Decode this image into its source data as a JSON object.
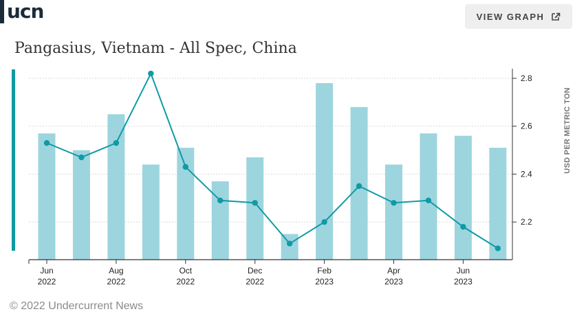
{
  "brand": {
    "logo_text": "ucn"
  },
  "header": {
    "view_graph_label": "VIEW GRAPH",
    "view_graph_icon": "external-link-icon"
  },
  "footer": {
    "copyright": "© 2022 Undercurrent News"
  },
  "colors": {
    "bar": "#9dd5de",
    "line": "#0f9aa5",
    "accent": "#0f9aa5",
    "grid": "#d9d9d9"
  },
  "chart_data": {
    "type": "bar",
    "title": "Pangasius, Vietnam - All Spec, China",
    "ylabel": "USD PER METRIC TON",
    "ylim": [
      2.04,
      2.84
    ],
    "yticks": [
      2.2,
      2.4,
      2.6,
      2.8
    ],
    "y_axis_position": "right",
    "grid": true,
    "legend": "none",
    "months": [
      "2022-06",
      "2022-07",
      "2022-08",
      "2022-09",
      "2022-10",
      "2022-11",
      "2022-12",
      "2023-01",
      "2023-02",
      "2023-03",
      "2023-04",
      "2023-05",
      "2023-06",
      "2023-07"
    ],
    "x_tick_labels": [
      {
        "month": "Jun",
        "year": "2022",
        "index": 0
      },
      {
        "month": "Aug",
        "year": "2022",
        "index": 2
      },
      {
        "month": "Oct",
        "year": "2022",
        "index": 4
      },
      {
        "month": "Dec",
        "year": "2022",
        "index": 6
      },
      {
        "month": "Feb",
        "year": "2023",
        "index": 8
      },
      {
        "month": "Apr",
        "year": "2023",
        "index": 10
      },
      {
        "month": "Jun",
        "year": "2023",
        "index": 12
      }
    ],
    "series": [
      {
        "type": "bar",
        "values": [
          2.57,
          2.5,
          2.65,
          2.44,
          2.51,
          2.37,
          2.47,
          2.15,
          2.78,
          2.68,
          2.44,
          2.57,
          2.56,
          2.51
        ]
      },
      {
        "type": "line",
        "values": [
          2.53,
          2.47,
          2.53,
          2.82,
          2.43,
          2.29,
          2.28,
          2.11,
          2.2,
          2.35,
          2.28,
          2.29,
          2.18,
          2.09
        ]
      }
    ]
  }
}
